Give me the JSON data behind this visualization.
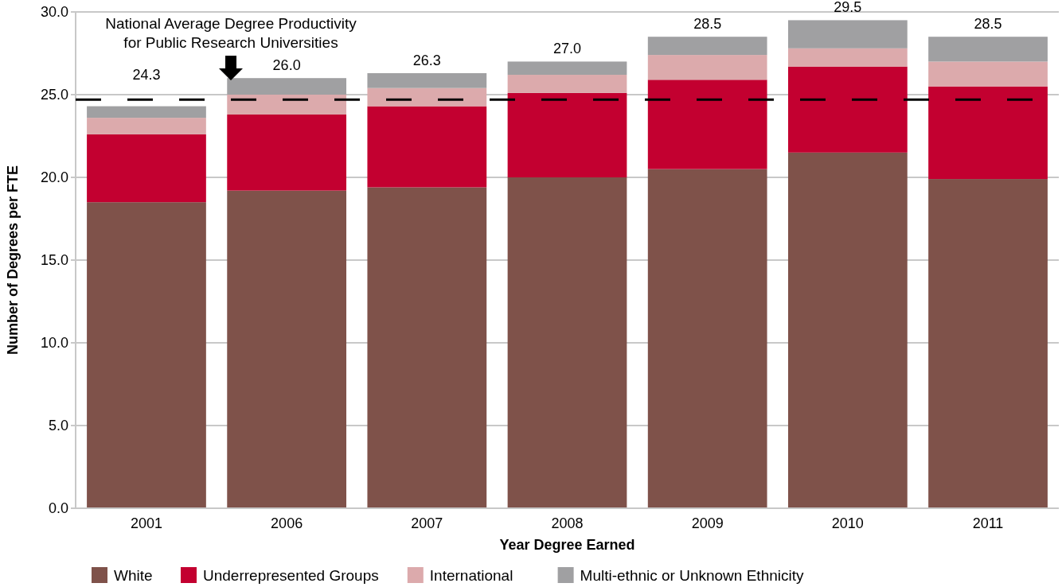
{
  "chart_data": {
    "type": "bar",
    "stacked": true,
    "xlabel": "Year Degree Earned",
    "ylabel": "Number of Degrees per FTE",
    "categories": [
      "2001",
      "2006",
      "2007",
      "2008",
      "2009",
      "2010",
      "2011"
    ],
    "series": [
      {
        "name": "White",
        "color": "#7f524a",
        "values": [
          18.5,
          19.2,
          19.4,
          20.0,
          20.5,
          21.5,
          19.9
        ]
      },
      {
        "name": "Underrepresented Groups",
        "color": "#c30030",
        "values": [
          4.1,
          4.6,
          4.9,
          5.1,
          5.4,
          5.2,
          5.6
        ]
      },
      {
        "name": "International",
        "color": "#dcaaac",
        "values": [
          1.0,
          1.2,
          1.1,
          1.1,
          1.5,
          1.1,
          1.5
        ]
      },
      {
        "name": "Multi-ethnic or Unknown Ethnicity",
        "color": "#a0a0a2",
        "values": [
          0.7,
          1.0,
          0.9,
          0.8,
          1.1,
          1.7,
          1.5
        ]
      }
    ],
    "totals": [
      "24.3",
      "26.0",
      "26.3",
      "27.0",
      "28.5",
      "29.5",
      "28.5"
    ],
    "ylim": [
      0,
      30
    ],
    "yticks": [
      {
        "value": 0,
        "label": "0.0"
      },
      {
        "value": 5,
        "label": "5.0"
      },
      {
        "value": 10,
        "label": "10.0"
      },
      {
        "value": 15,
        "label": "15.0"
      },
      {
        "value": 20,
        "label": "20.0"
      },
      {
        "value": 25,
        "label": "25.0"
      },
      {
        "value": 30,
        "label": "30.0"
      }
    ],
    "grid": "y",
    "legend": "bottom",
    "annotations": [
      "National Average Degree Productivity for Public Research Universities"
    ],
    "ref_lines": [
      {
        "axis": "y",
        "value": 24.7,
        "color": "#000000",
        "line_style": "dashed"
      }
    ]
  }
}
